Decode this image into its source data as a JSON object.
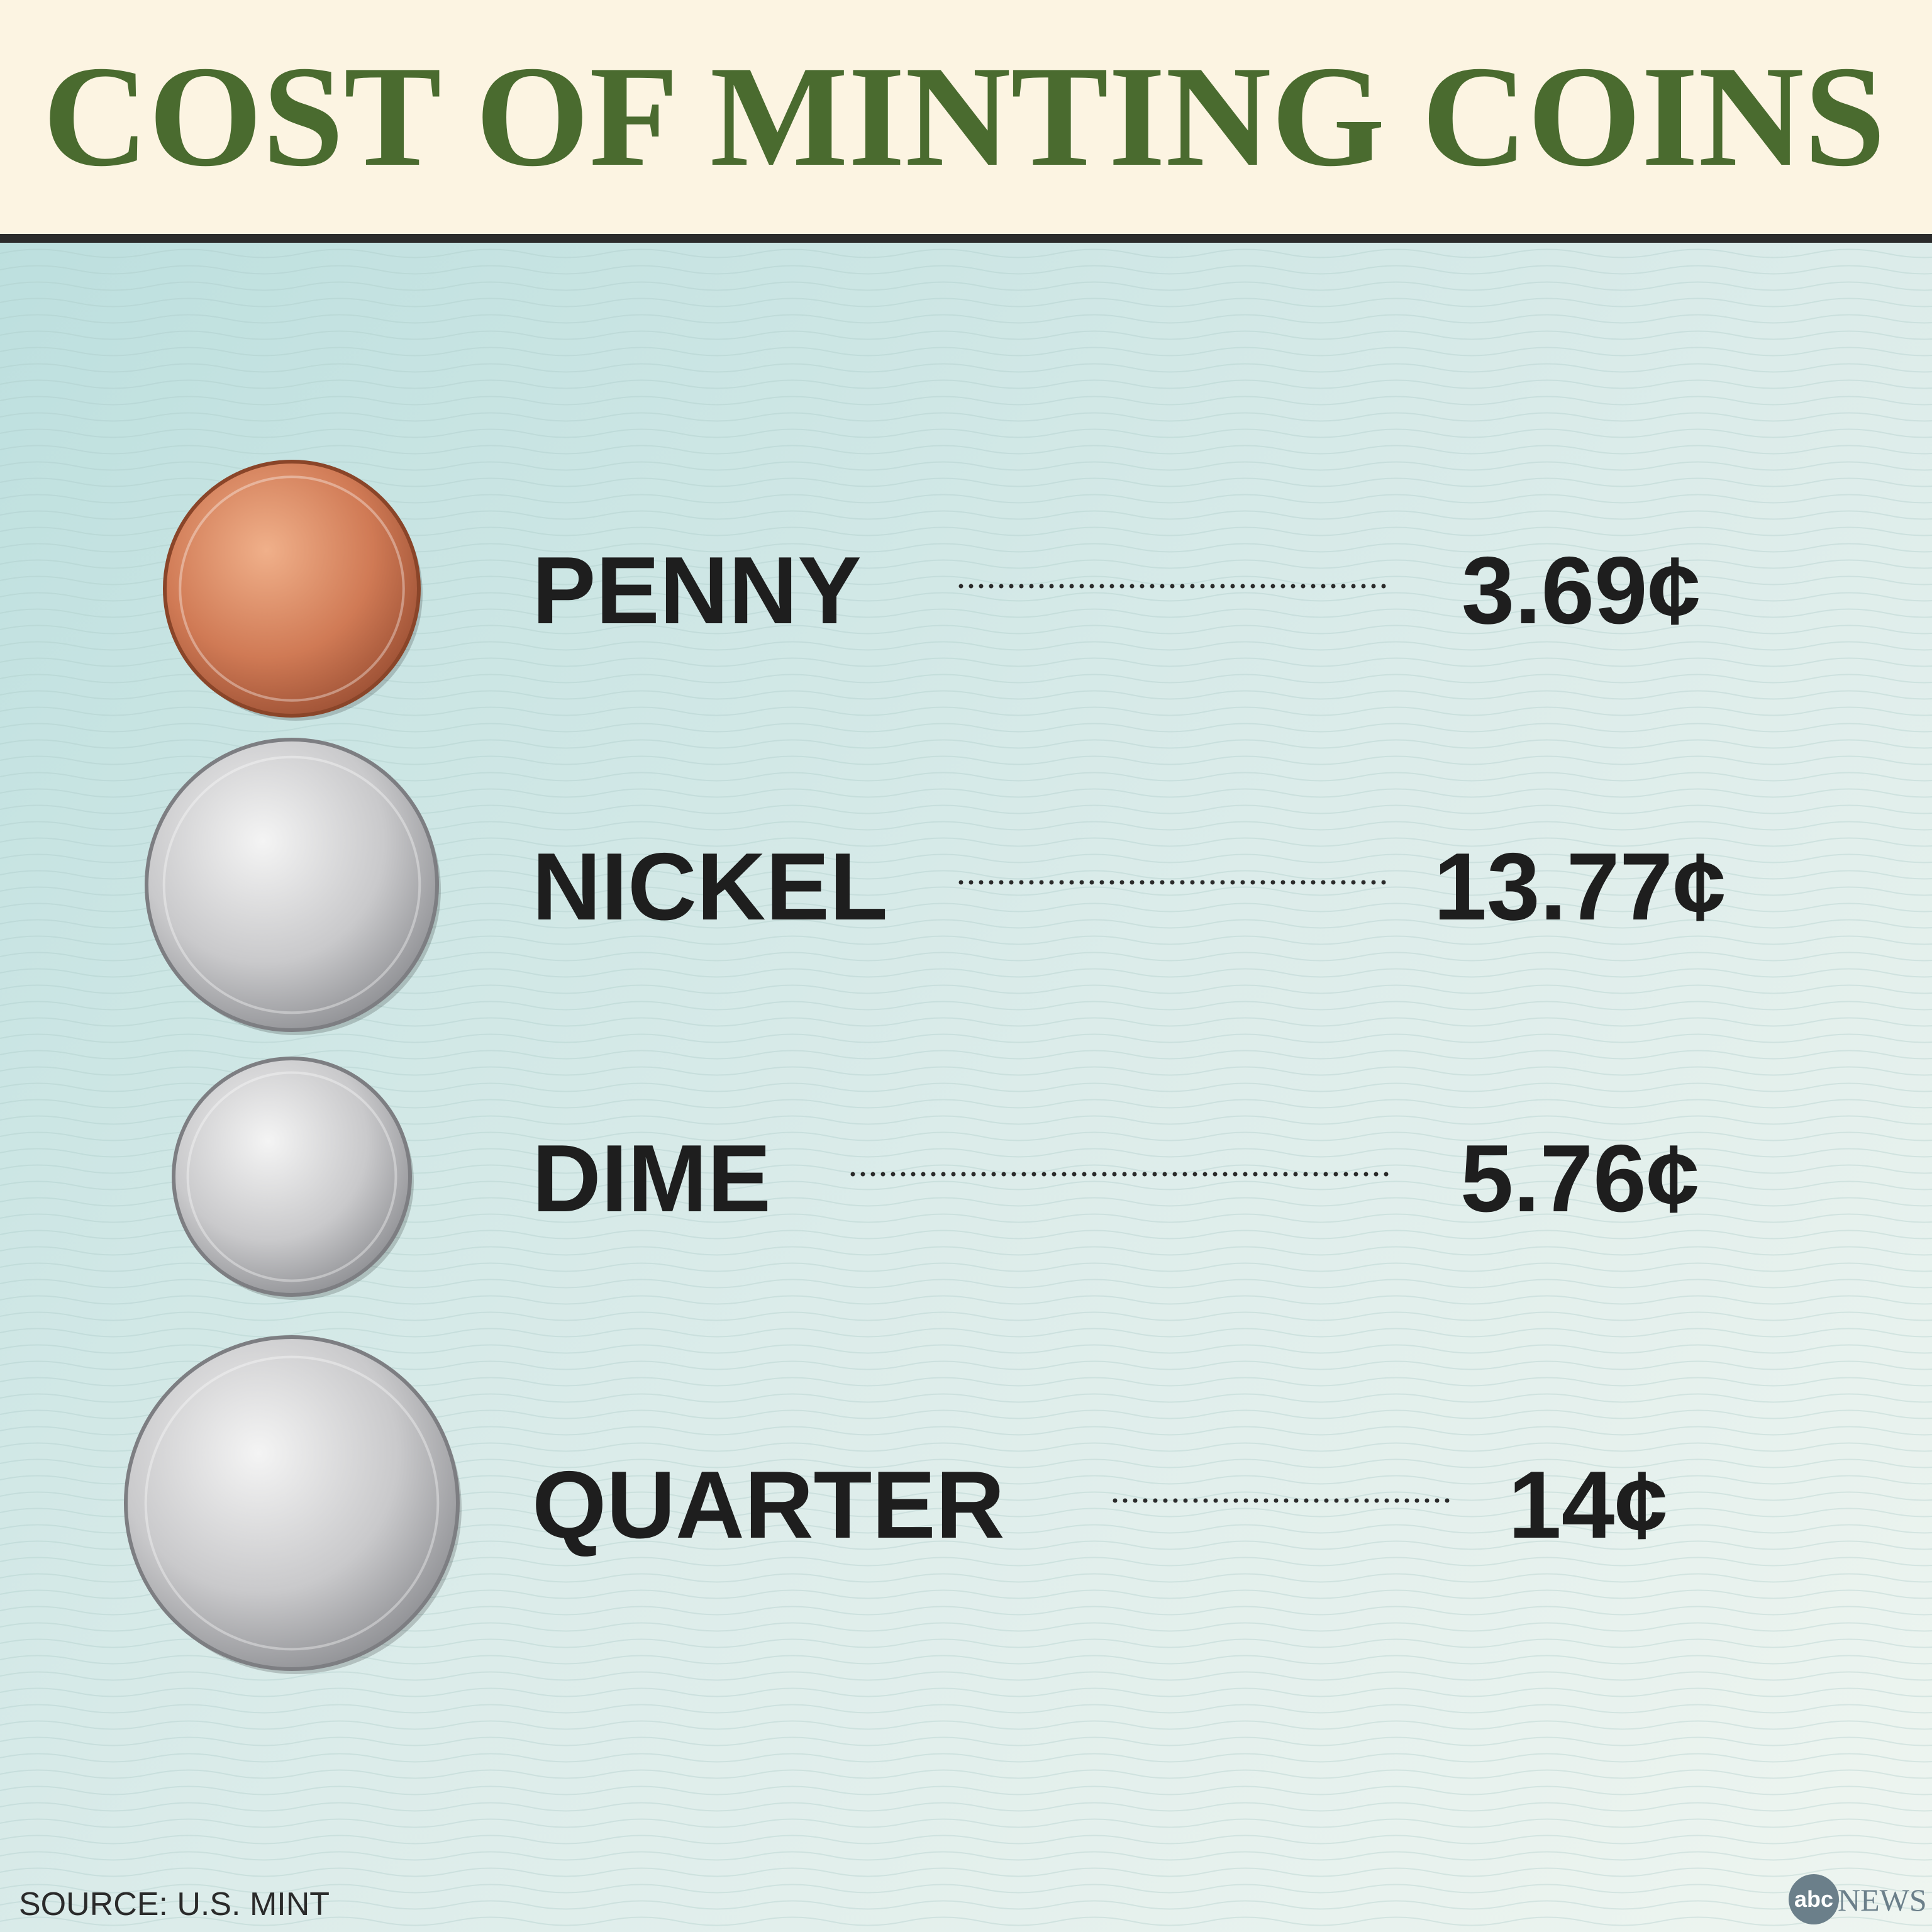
{
  "header": {
    "title": "COST OF MINTING COINS"
  },
  "coins": [
    {
      "name": "PENNY",
      "cost": "3.69¢"
    },
    {
      "name": "NICKEL",
      "cost": "13.77¢"
    },
    {
      "name": "DIME",
      "cost": "5.76¢"
    },
    {
      "name": "QUARTER",
      "cost": "14¢"
    }
  ],
  "footer": {
    "source": "SOURCE: U.S. MINT",
    "logo_mark": "abc",
    "logo_text": "NEWS"
  }
}
